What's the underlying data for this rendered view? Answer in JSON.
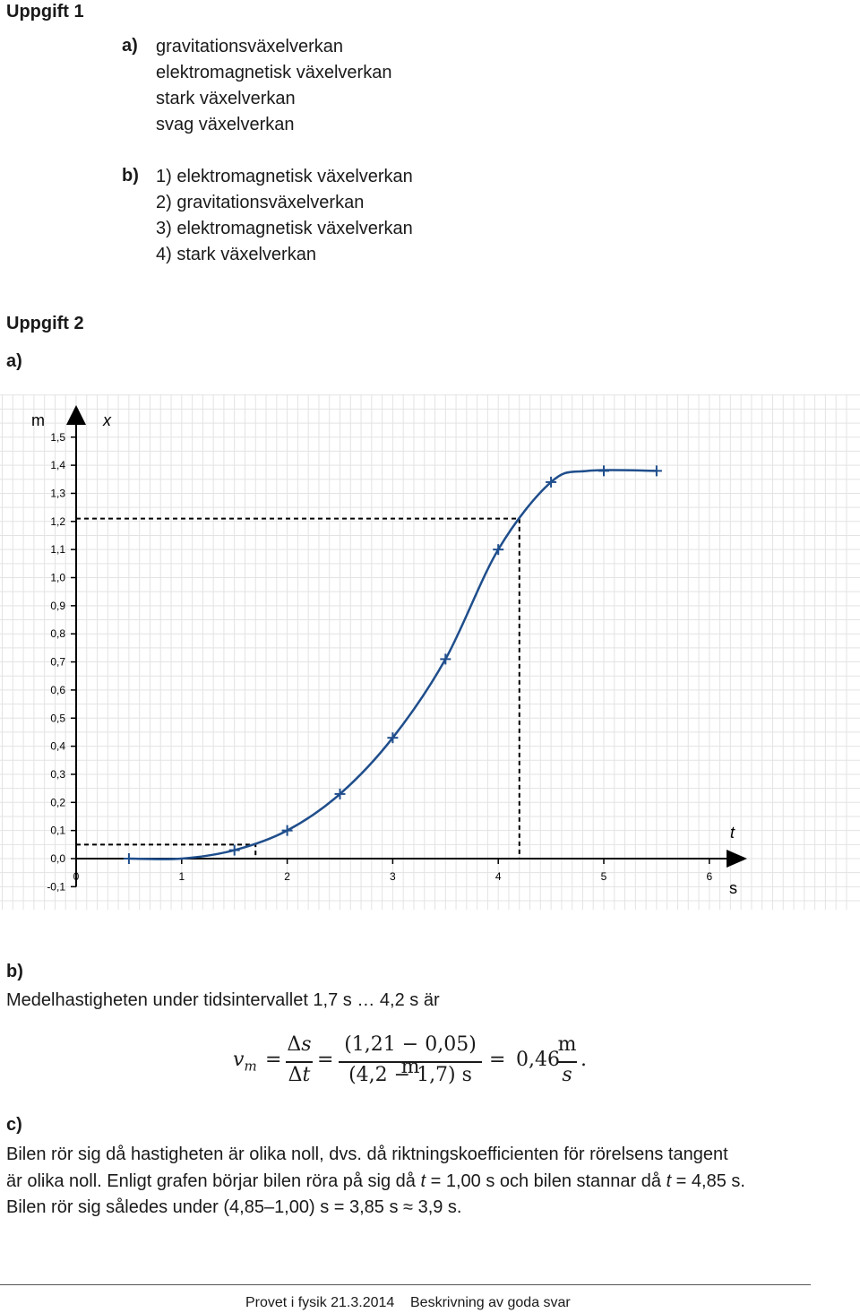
{
  "task1": {
    "heading": "Uppgift 1",
    "a": {
      "label": "a)",
      "items": [
        "gravitationsväxelverkan",
        "elektromagnetisk växelverkan",
        "stark växelverkan",
        "svag växelverkan"
      ]
    },
    "b": {
      "label": "b)",
      "items": [
        "1) elektromagnetisk växelverkan",
        "2) gravitationsväxelverkan",
        "3) elektromagnetisk växelverkan",
        "4) stark växelverkan"
      ]
    }
  },
  "task2": {
    "heading": "Uppgift 2",
    "a_label": "a)",
    "b_label": "b)",
    "b_text": "Medelhastigheten under tidsintervallet 1,7 s … 4,2 s är",
    "formula": {
      "lhs_var": "v",
      "lhs_sub": "m",
      "eq1": "=",
      "delta_num": "Δ",
      "delta_num_var": "s",
      "delta_den": "Δ",
      "delta_den_var": "t",
      "eq2": "=",
      "num": "(1,21 − 0,05) m",
      "den": "(4,2 − 1,7) s",
      "eq3": "=",
      "result": "0,46",
      "unit_num": "m",
      "unit_den": "s",
      "end": "."
    },
    "c_label": "c)",
    "c_line1": "Bilen rör sig då hastigheten är olika noll, dvs. då riktningskoefficienten för rörelsens tangent",
    "c_line2_a": "är olika noll. Enligt grafen börjar bilen röra på sig då ",
    "c_line2_t1": "t",
    "c_line2_b": " = 1,00 s och bilen stannar då ",
    "c_line2_t2": "t",
    "c_line2_c": " = 4,85 s.",
    "c_line3": "Bilen rör sig således under (4,85–1,00) s = 3,85 s ≈ 3,9 s."
  },
  "footer": {
    "left": "Provet i fysik 21.3.2014",
    "right": "Beskrivning av goda svar"
  },
  "chart_data": {
    "type": "line",
    "y_unit": "m",
    "y_var": "x",
    "x_var": "t",
    "x_unit": "s",
    "xlim": [
      0,
      6.3
    ],
    "ylim": [
      -0.1,
      1.55
    ],
    "x_ticks": [
      0,
      1,
      2,
      3,
      4,
      5,
      6
    ],
    "x_tick_labels": [
      "0",
      "1",
      "2",
      "3",
      "4",
      "5",
      "6"
    ],
    "y_ticks": [
      -0.1,
      0.0,
      0.1,
      0.2,
      0.3,
      0.4,
      0.5,
      0.6,
      0.7,
      0.8,
      0.9,
      1.0,
      1.1,
      1.2,
      1.3,
      1.4,
      1.5
    ],
    "y_tick_labels": [
      "-0,1",
      "0,0",
      "0,1",
      "0,2",
      "0,3",
      "0,4",
      "0,5",
      "0,6",
      "0,7",
      "0,8",
      "0,9",
      "1,0",
      "1,1",
      "1,2",
      "1,3",
      "1,4",
      "1,5"
    ],
    "grid": true,
    "measured_points": [
      {
        "x": 0.5,
        "y": 0.0
      },
      {
        "x": 1.5,
        "y": 0.03
      },
      {
        "x": 2.0,
        "y": 0.1
      },
      {
        "x": 2.5,
        "y": 0.23
      },
      {
        "x": 3.0,
        "y": 0.43
      },
      {
        "x": 3.5,
        "y": 0.71
      },
      {
        "x": 4.0,
        "y": 1.1
      },
      {
        "x": 4.5,
        "y": 1.34
      },
      {
        "x": 5.0,
        "y": 1.38
      },
      {
        "x": 5.5,
        "y": 1.38
      }
    ],
    "curve": [
      {
        "x": 0.5,
        "y": 0.0
      },
      {
        "x": 1.0,
        "y": 0.0
      },
      {
        "x": 1.5,
        "y": 0.03
      },
      {
        "x": 2.0,
        "y": 0.1
      },
      {
        "x": 2.5,
        "y": 0.23
      },
      {
        "x": 3.0,
        "y": 0.43
      },
      {
        "x": 3.5,
        "y": 0.71
      },
      {
        "x": 4.0,
        "y": 1.1
      },
      {
        "x": 4.5,
        "y": 1.34
      },
      {
        "x": 4.85,
        "y": 1.38
      },
      {
        "x": 5.5,
        "y": 1.38
      }
    ],
    "reference_lines": [
      {
        "t": 1.7,
        "x": 0.05
      },
      {
        "t": 4.2,
        "x": 1.21
      }
    ],
    "colors": {
      "curve": "#1f4e8c",
      "marker": "#1f4e8c",
      "grid": "#e3e3e3",
      "axis": "#000000"
    }
  }
}
